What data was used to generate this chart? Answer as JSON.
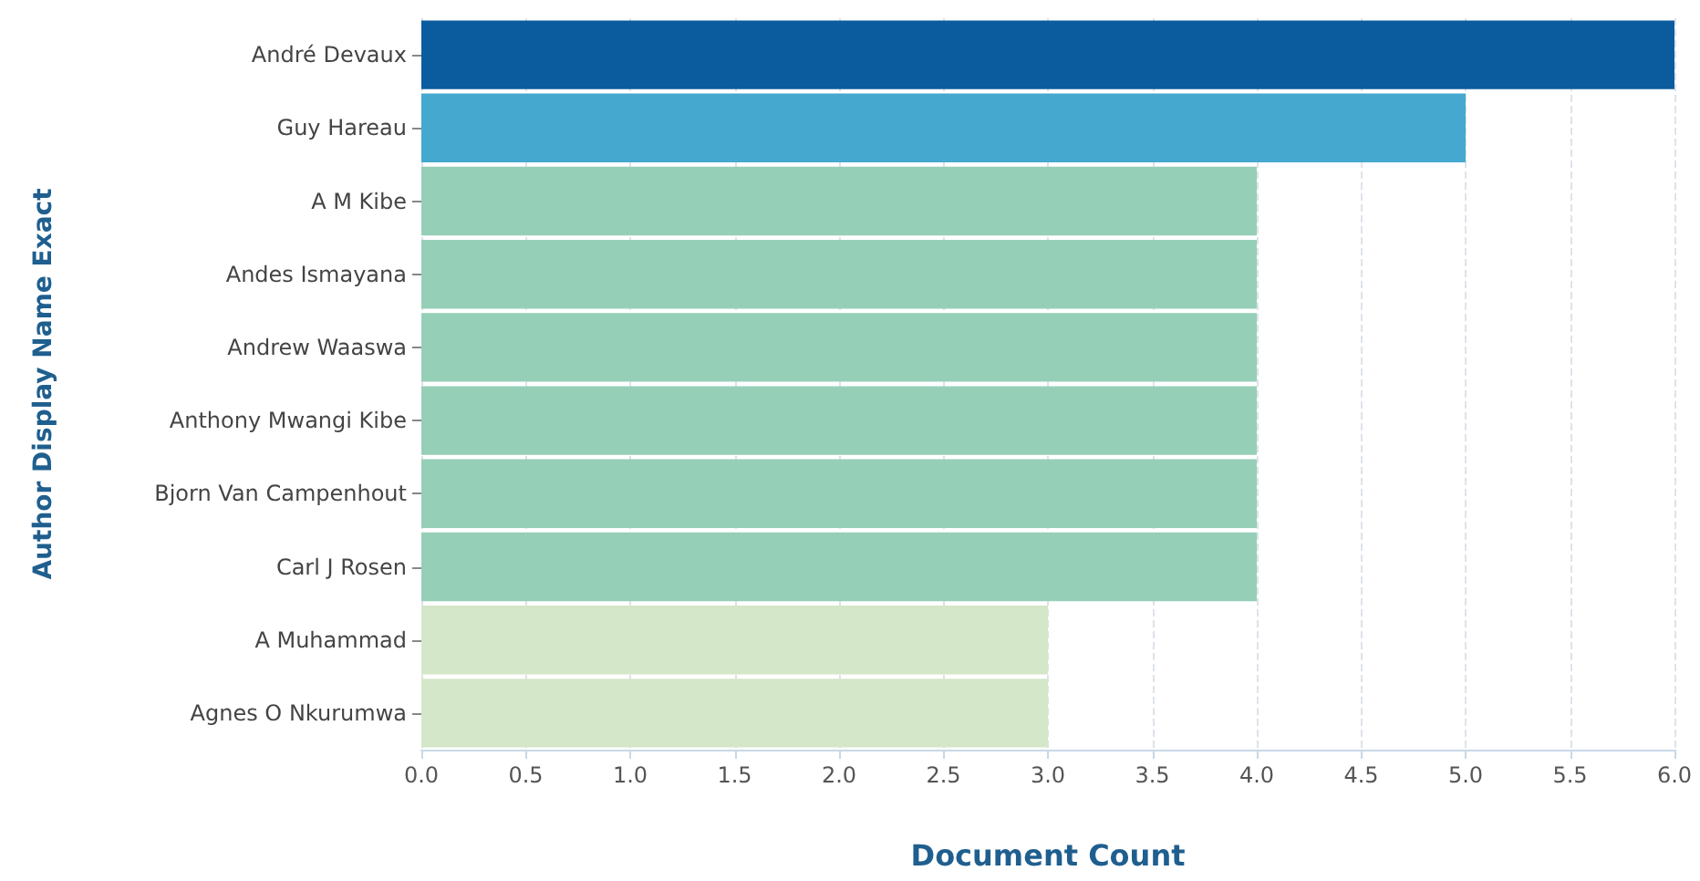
{
  "chart_data": {
    "type": "bar",
    "orientation": "horizontal",
    "xlabel": "Document Count",
    "ylabel": "Author Display Name Exact",
    "categories": [
      "André Devaux",
      "Guy Hareau",
      "A M Kibe",
      "Andes Ismayana",
      "Andrew Waaswa",
      "Anthony Mwangi Kibe",
      "Bjorn Van Campenhout",
      "Carl J Rosen",
      "A Muhammad",
      "Agnes O Nkurumwa"
    ],
    "values": [
      6,
      5,
      4,
      4,
      4,
      4,
      4,
      4,
      3,
      3
    ],
    "colors": [
      "#0b5c9e",
      "#45a8cf",
      "#96cfb8",
      "#96cfb8",
      "#96cfb8",
      "#96cfb8",
      "#96cfb8",
      "#96cfb8",
      "#d4e7c8",
      "#d4e7c8"
    ],
    "xlim": [
      0,
      6
    ],
    "xticks": [
      {
        "value": 0,
        "label": "0.0"
      },
      {
        "value": 0.5,
        "label": "0.5"
      },
      {
        "value": 1,
        "label": "1.0"
      },
      {
        "value": 1.5,
        "label": "1.5"
      },
      {
        "value": 2,
        "label": "2.0"
      },
      {
        "value": 2.5,
        "label": "2.5"
      },
      {
        "value": 3,
        "label": "3.0"
      },
      {
        "value": 3.5,
        "label": "3.5"
      },
      {
        "value": 4,
        "label": "4.0"
      },
      {
        "value": 4.5,
        "label": "4.5"
      },
      {
        "value": 5,
        "label": "5.0"
      },
      {
        "value": 5.5,
        "label": "5.5"
      },
      {
        "value": 6,
        "label": "6.0"
      }
    ],
    "grid": "x"
  }
}
